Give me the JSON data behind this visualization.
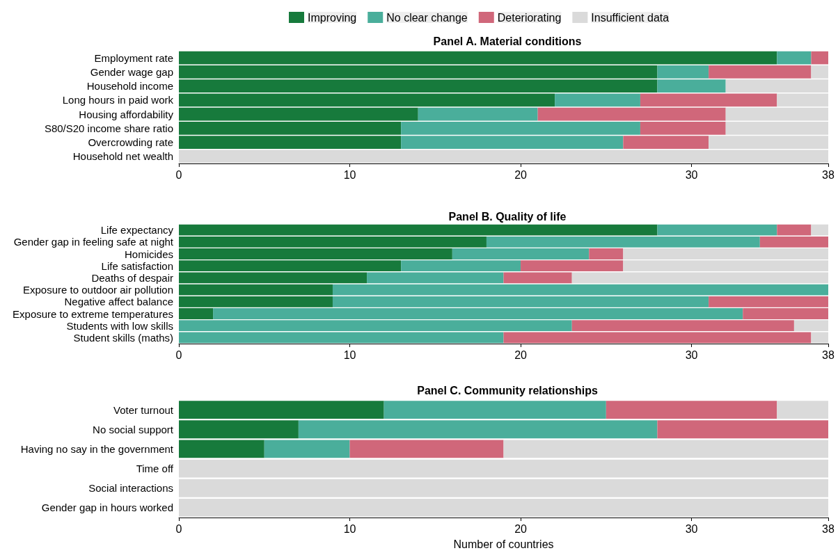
{
  "chart_data": [
    {
      "type": "bar",
      "orientation": "horizontal",
      "stacked": true,
      "title": "Panel A. Material conditions",
      "legend": "top",
      "grid": false,
      "categories": [
        "Employment rate",
        "Gender wage gap",
        "Household income",
        "Long hours in paid work",
        "Housing affordability",
        "S80/S20 income share ratio",
        "Overcrowding rate",
        "Household net wealth"
      ],
      "xlim": [
        0,
        38
      ],
      "xticks": [
        0,
        10,
        20,
        30,
        38
      ],
      "series": [
        {
          "name": "Improving",
          "color": "#177a3c",
          "values": [
            35,
            28,
            28,
            22,
            14,
            13,
            13,
            0
          ]
        },
        {
          "name": "No clear change",
          "color": "#4aae9b",
          "values": [
            2,
            3,
            4,
            5,
            7,
            14,
            13,
            0
          ]
        },
        {
          "name": "Deteriorating",
          "color": "#d0677a",
          "values": [
            1,
            6,
            0,
            8,
            11,
            5,
            5,
            0
          ]
        },
        {
          "name": "Insufficient data",
          "color": "#dadada",
          "values": [
            0,
            1,
            6,
            3,
            6,
            6,
            7,
            38
          ]
        }
      ]
    },
    {
      "type": "bar",
      "orientation": "horizontal",
      "stacked": true,
      "title": "Panel B. Quality of life",
      "grid": false,
      "categories": [
        "Life expectancy",
        "Gender gap in feeling safe at night",
        "Homicides",
        "Life satisfaction",
        "Deaths of despair",
        "Exposure to outdoor air pollution",
        "Negative affect balance",
        "Exposure to extreme temperatures",
        "Students with low skills",
        "Student skills (maths)"
      ],
      "xlim": [
        0,
        38
      ],
      "xticks": [
        0,
        10,
        20,
        30,
        38
      ],
      "series": [
        {
          "color": "#177a3c",
          "values": [
            28,
            18,
            16,
            13,
            11,
            9,
            9,
            2,
            0,
            0
          ]
        },
        {
          "color": "#4aae9b",
          "values": [
            7,
            16,
            8,
            7,
            8,
            29,
            22,
            31,
            23,
            19
          ]
        },
        {
          "color": "#d0677a",
          "values": [
            2,
            4,
            2,
            6,
            4,
            0,
            7,
            5,
            13,
            18
          ]
        },
        {
          "color": "#dadada",
          "values": [
            1,
            0,
            12,
            12,
            15,
            0,
            0,
            0,
            2,
            1
          ]
        }
      ]
    },
    {
      "type": "bar",
      "orientation": "horizontal",
      "stacked": true,
      "title": "Panel C. Community relationships",
      "xlabel": "Number of countries",
      "grid": false,
      "categories": [
        "Voter turnout",
        "No social support",
        "Having no say in the government",
        "Time off",
        "Social interactions",
        "Gender gap in hours worked"
      ],
      "xlim": [
        0,
        38
      ],
      "xticks": [
        0,
        10,
        20,
        30,
        38
      ],
      "series": [
        {
          "color": "#177a3c",
          "values": [
            12,
            7,
            5,
            0,
            0,
            0
          ]
        },
        {
          "color": "#4aae9b",
          "values": [
            13,
            21,
            5,
            0,
            0,
            0
          ]
        },
        {
          "color": "#d0677a",
          "values": [
            10,
            10,
            9,
            0,
            0,
            0
          ]
        },
        {
          "color": "#dadada",
          "values": [
            3,
            0,
            19,
            38,
            38,
            38
          ]
        }
      ]
    }
  ]
}
